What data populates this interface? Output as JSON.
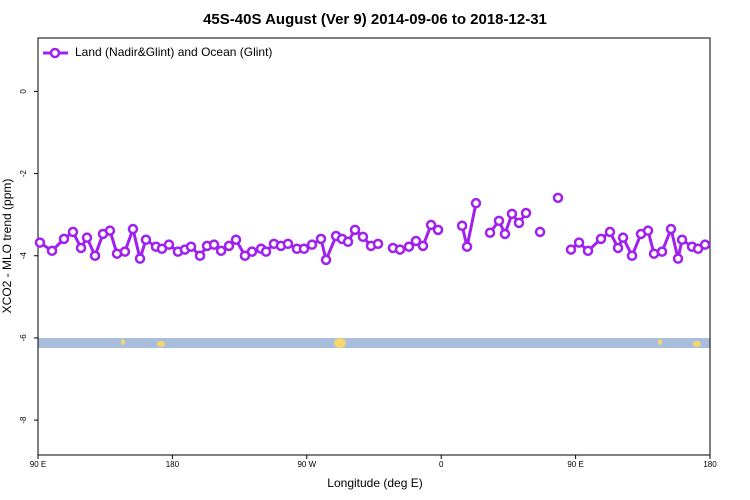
{
  "chart_data": {
    "type": "line",
    "title": "45S-40S August (Ver 9)   2014-09-06 to 2018-12-31",
    "x_label": "Longitude (deg E)",
    "y_label": "XCO2 - MLO trend (ppm)",
    "xlim": [
      90,
      540
    ],
    "ylim": [
      -8.85,
      1.3
    ],
    "xticks": [
      {
        "value": 90,
        "label": "90 E"
      },
      180,
      {
        "value": 270,
        "label": "90 W"
      },
      {
        "value": 360,
        "label": "0"
      },
      {
        "value": 450,
        "label": "90 E"
      },
      {
        "value": 540,
        "label": "180"
      }
    ],
    "yticks": [
      0,
      -2,
      -4,
      -6,
      -8
    ],
    "legend": "upper left",
    "x": [
      91.3,
      99.4,
      107.4,
      113.4,
      118.8,
      122.8,
      128.2,
      133.5,
      138.2,
      142.9,
      148.2,
      153.6,
      158.3,
      162.3,
      169,
      173,
      177.7,
      183.7,
      188.4,
      192.5,
      198.5,
      203.2,
      207.9,
      212.6,
      217.9,
      222.6,
      228.6,
      233.3,
      239.4,
      242.7,
      248,
      252.7,
      257.4,
      263.4,
      268.1,
      273.5,
      279.5,
      282.9,
      289.6,
      293.6,
      297.6,
      302.3,
      307.6,
      313,
      317.7,
      322.3,
      327.7,
      332.4,
      338.4,
      343.1,
      347.8,
      353.2,
      357.9,
      366,
      374,
      377.3,
      383.3,
      388,
      392.7,
      398.7,
      402.7,
      407.4,
      412.1,
      416.8,
      421.5,
      426.2,
      432.2,
      438.2,
      442.9,
      446.9,
      452.3,
      458.3,
      467,
      473,
      478.4,
      481.8,
      487.8,
      493.8,
      498.5,
      502.5,
      507.9,
      513.9,
      518.6,
      521.3,
      528,
      532,
      536.7
    ],
    "series": [
      {
        "name": "Land (Nadir&Glint) and Ocean (Glint)",
        "color": "#a020f0",
        "values": [
          -3.68,
          -3.88,
          -3.59,
          -3.42,
          -3.81,
          -3.56,
          -4.0,
          -3.47,
          -3.39,
          -3.95,
          -3.9,
          -3.35,
          -4.07,
          -3.61,
          -3.78,
          -3.83,
          -3.73,
          -3.9,
          -3.85,
          -3.78,
          -4.0,
          -3.76,
          -3.73,
          -3.88,
          -3.76,
          -3.61,
          -4.0,
          -3.9,
          -3.83,
          -3.9,
          -3.71,
          -3.76,
          -3.71,
          -3.83,
          -3.83,
          -3.73,
          -3.59,
          -4.1,
          -3.52,
          -3.59,
          -3.66,
          -3.37,
          -3.54,
          -3.76,
          -3.71,
          null,
          -3.81,
          -3.85,
          -3.78,
          -3.64,
          -3.76,
          -3.25,
          -3.37,
          null,
          -3.27,
          -3.78,
          -2.72,
          null,
          -3.44,
          -3.15,
          -3.47,
          -2.98,
          -3.2,
          -2.96,
          null,
          -3.42,
          null,
          -2.59,
          null,
          -3.85,
          -3.68,
          -3.88,
          -3.59,
          -3.42,
          -3.81,
          -3.56,
          -4.0,
          -3.47,
          -3.39,
          -3.95,
          -3.9,
          -3.35,
          -4.07,
          -3.61,
          -3.78,
          -3.83,
          -3.73
        ]
      }
    ]
  }
}
